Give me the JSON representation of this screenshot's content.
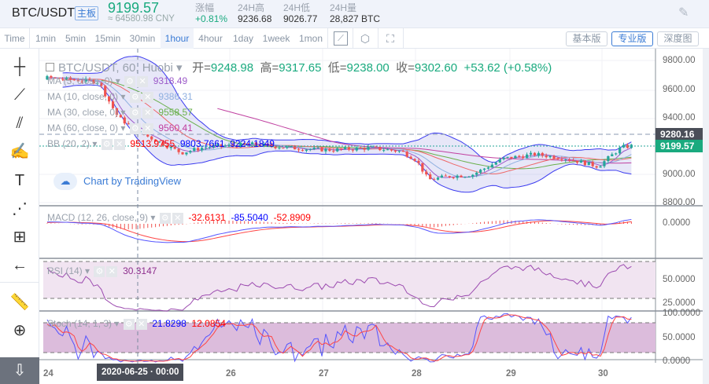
{
  "header": {
    "symbol": "BTC/USDT",
    "board": "主板",
    "price": "9199.57",
    "cny": "≈ 64580.98 CNY",
    "stats": [
      {
        "label": "涨幅",
        "value": "+0.81%",
        "up": true
      },
      {
        "label": "24H高",
        "value": "9236.68"
      },
      {
        "label": "24H低",
        "value": "9026.77"
      },
      {
        "label": "24H量",
        "value": "28,827 BTC"
      }
    ]
  },
  "toolbar": {
    "timeframes": [
      "Time",
      "1min",
      "5min",
      "15min",
      "30min",
      "1hour",
      "4hour",
      "1day",
      "1week",
      "1mon"
    ],
    "active": "1hour",
    "views": [
      "基本版",
      "专业版",
      "深度图"
    ],
    "active_view": "专业版"
  },
  "legend": {
    "title": "BTC/USDT, 60, Huobi",
    "open_label": "开=",
    "open": "9248.98",
    "high_label": "高=",
    "high": "9317.65",
    "low_label": "低=",
    "low": "9238.00",
    "close_label": "收=",
    "close": "9302.60",
    "change": "+53.62 (+0.58%)",
    "ma5": {
      "label": "MA (5, close, 0)",
      "value": "9318.49"
    },
    "ma10": {
      "label": "MA (10, close, 0)",
      "value": "9386.31"
    },
    "ma30": {
      "label": "MA (30, close, 0)",
      "value": "9558.57"
    },
    "ma60": {
      "label": "MA (60, close, 0)",
      "value": "9560.41"
    },
    "bb": {
      "label": "BB (20, 2)",
      "v1": "9513.9755",
      "v2": "9803.7661",
      "v3": "9224.1849"
    },
    "macd": {
      "label": "MACD (12, 26, close, 9)",
      "v1": "-32.6131",
      "v2": "-85.5040",
      "v3": "-52.8909"
    },
    "rsi": {
      "label": "RSI (14)",
      "v1": "30.3147"
    },
    "stoch": {
      "label": "Stoch (14, 1, 3)",
      "v1": "21.8298",
      "v2": "12.0854"
    }
  },
  "watermark": "Chart by TradingView",
  "axis": {
    "main": [
      "9800.00",
      "9600.00",
      "9400.00",
      "9000.00",
      "8800.00"
    ],
    "macd": [
      "0.0000"
    ],
    "rsi": [
      "50.0000",
      "25.0000"
    ],
    "stoch": [
      "100.0000",
      "50.0000",
      "0.0000"
    ],
    "last_tag": "9280.16",
    "price_tag": "9199.57",
    "time_ticks": [
      "24",
      "26",
      "27",
      "28",
      "29",
      "30"
    ],
    "crosshair_time": "2020-06-25 · 00:00"
  },
  "colors": {
    "up": "#26a69a",
    "down": "#ef5350",
    "accent": "#3a7bd5",
    "ma5": "#9c5bc9",
    "ma10": "#8fb0e0",
    "ma30": "#6ab04c",
    "ma60": "#c040a0",
    "bb": "#3b3bf0"
  },
  "chart_data": {
    "type": "candlestick",
    "interval": "1hour",
    "start_day": 24,
    "end_day": 30.34,
    "anchors": [
      [
        23.4,
        9640
      ],
      [
        24.0,
        9680
      ],
      [
        24.58,
        9650
      ],
      [
        24.66,
        9550
      ],
      [
        24.79,
        9400
      ],
      [
        25.0,
        9300
      ],
      [
        25.47,
        9150
      ],
      [
        25.72,
        9190
      ],
      [
        26.23,
        9210
      ],
      [
        26.74,
        9180
      ],
      [
        27.08,
        9170
      ],
      [
        27.5,
        9185
      ],
      [
        27.84,
        9160
      ],
      [
        28.0,
        9100
      ],
      [
        28.13,
        8960
      ],
      [
        28.35,
        8985
      ],
      [
        28.6,
        8995
      ],
      [
        28.94,
        9110
      ],
      [
        29.28,
        9140
      ],
      [
        29.62,
        9110
      ],
      [
        29.96,
        9055
      ],
      [
        30.21,
        9190
      ],
      [
        30.34,
        9200
      ]
    ],
    "ylim_main": [
      8800,
      9800
    ]
  }
}
